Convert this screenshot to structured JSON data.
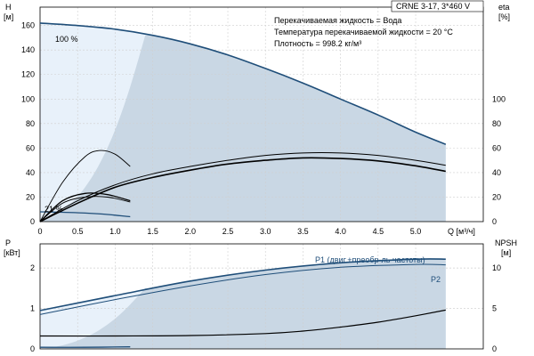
{
  "model": "CRNE 3-17, 3*460 V",
  "info": [
    "Перекачиваемая жидкость = Вода",
    "Температура перекачиваемой жидкости = 20 °C",
    "Плотность = 998.2 кг/м³"
  ],
  "chart_data": [
    {
      "id": "head",
      "type": "line",
      "x_label": "Q [м³/ч]",
      "y_left_label": [
        "H",
        "[м]"
      ],
      "y_right_label": [
        "eta",
        "[%]"
      ],
      "xlim": [
        0,
        5.9
      ],
      "ylim": [
        0,
        175
      ],
      "x_ticks": [
        "0",
        "0.5",
        "1.0",
        "1.5",
        "2.0",
        "2.5",
        "3.0",
        "3.5",
        "4.0",
        "4.5",
        "5.0"
      ],
      "y_ticks": [
        "0",
        "20",
        "40",
        "60",
        "80",
        "100",
        "120",
        "140",
        "160"
      ],
      "y2_ticks": [
        "0",
        "20",
        "40",
        "60",
        "80",
        "100"
      ],
      "curve_labels": [
        "100 %",
        "21 %"
      ],
      "series": [
        {
          "key": "head_100",
          "color": "#1f4e79",
          "width": 1.6,
          "x": [
            0,
            0.5,
            1.0,
            1.5,
            2.0,
            2.5,
            3.0,
            3.5,
            4.0,
            4.5,
            5.0,
            5.4
          ],
          "y": [
            162,
            160,
            157,
            152,
            145,
            136,
            125,
            113,
            100,
            87,
            73,
            63
          ]
        },
        {
          "key": "head_21",
          "color": "#1f4e79",
          "width": 1.3,
          "x": [
            0,
            0.3,
            0.6,
            0.9,
            1.2
          ],
          "y": [
            8,
            7.6,
            7,
            5.8,
            4
          ]
        },
        {
          "key": "eta_a",
          "color": "#000000",
          "width": 1.0,
          "x": [
            0,
            0.5,
            1.0,
            1.5,
            2.0,
            2.5,
            3.0,
            3.5,
            4.0,
            4.5,
            5.0,
            5.4
          ],
          "y": [
            0,
            17,
            30,
            39,
            45,
            50,
            54,
            56,
            56,
            54,
            50,
            46
          ]
        },
        {
          "key": "eta_b",
          "color": "#000000",
          "width": 1.6,
          "x": [
            0,
            0.5,
            1.0,
            1.5,
            2.0,
            2.5,
            3.0,
            3.5,
            4.0,
            4.5,
            5.0,
            5.4
          ],
          "y": [
            0,
            15,
            28,
            36,
            42,
            47,
            50,
            52,
            51.5,
            49.5,
            45.5,
            41
          ]
        },
        {
          "key": "eta_small_a",
          "color": "#000000",
          "width": 1.3,
          "x": [
            0,
            0.3,
            0.6,
            0.9,
            1.2
          ],
          "y": [
            0,
            17,
            23,
            22,
            17
          ]
        },
        {
          "key": "eta_small_b",
          "color": "#000000",
          "width": 0.9,
          "x": [
            0,
            0.3,
            0.6,
            0.9,
            1.2
          ],
          "y": [
            0,
            15,
            20,
            20,
            16
          ]
        },
        {
          "key": "eta_hump",
          "color": "#000000",
          "width": 0.9,
          "x": [
            0,
            0.3,
            0.6,
            0.8,
            1.0,
            1.2
          ],
          "y": [
            0,
            32,
            53,
            58,
            55,
            45
          ]
        }
      ],
      "area_upper_x": [
        0,
        0.5,
        1.0,
        1.5,
        2.0,
        2.5,
        3.0,
        3.5,
        4.0,
        4.5,
        5.0,
        5.4
      ],
      "area_upper_y": [
        162,
        160,
        157,
        152,
        145,
        136,
        125,
        113,
        100,
        87,
        73,
        63
      ],
      "area_lower_x": [
        5.4,
        4.0,
        3.0,
        2.0,
        1.5,
        1.0,
        0.6,
        0.3,
        0.15,
        0
      ],
      "area_lower_y": [
        0,
        0,
        0,
        0,
        0,
        0,
        0,
        0,
        0,
        0
      ],
      "light_boundary_x": [
        1.4,
        1.2,
        1.0,
        0.8,
        0.6,
        0.4,
        0.2,
        0.05,
        0
      ],
      "light_boundary_y": [
        152,
        110,
        75,
        48,
        28,
        14,
        5,
        0.8,
        0
      ]
    },
    {
      "id": "power",
      "type": "line",
      "x_label": "",
      "y_left_label": [
        "P",
        "[кВт]"
      ],
      "y_right_label": [
        "NPSH",
        "[м]"
      ],
      "xlim": [
        0,
        5.9
      ],
      "ylim": [
        0,
        2.6
      ],
      "y2lim": [
        0,
        13
      ],
      "y_ticks": [
        "0",
        "1",
        "2"
      ],
      "y2_ticks": [
        "0",
        "5",
        "10"
      ],
      "series_labels": [
        "P1 (двиг.+преобр-ль частоты)",
        "P2"
      ],
      "series": [
        {
          "key": "P1",
          "color": "#1f4e79",
          "width": 1.6,
          "x": [
            0,
            1.0,
            2.0,
            3.0,
            4.0,
            5.0,
            5.4
          ],
          "y": [
            0.95,
            1.32,
            1.68,
            1.95,
            2.13,
            2.22,
            2.22
          ]
        },
        {
          "key": "P2",
          "color": "#1f4e79",
          "width": 1.0,
          "x": [
            0,
            1.0,
            2.0,
            3.0,
            4.0,
            5.0,
            5.4
          ],
          "y": [
            0.85,
            1.22,
            1.56,
            1.84,
            2.02,
            2.09,
            2.08
          ]
        },
        {
          "key": "NPSH",
          "color": "#000000",
          "width": 1.2,
          "axis": "right",
          "x": [
            0,
            1.0,
            2.0,
            3.0,
            3.5,
            4.0,
            4.5,
            5.0,
            5.4
          ],
          "y": [
            1.6,
            1.6,
            1.65,
            1.9,
            2.2,
            2.7,
            3.3,
            4.1,
            4.8
          ]
        },
        {
          "key": "P_21",
          "color": "#1f4e79",
          "width": 1.3,
          "x": [
            0,
            0.6,
            1.2
          ],
          "y": [
            0.04,
            0.04,
            0.05
          ]
        }
      ],
      "area_upper_x": [
        0,
        1.0,
        2.0,
        3.0,
        4.0,
        5.0,
        5.4
      ],
      "area_upper_y": [
        0.95,
        1.32,
        1.68,
        1.95,
        2.13,
        2.22,
        2.22
      ],
      "light_boundary_x": [
        1.4,
        1.2,
        1.0,
        0.8,
        0.6,
        0.4,
        0.2,
        0
      ],
      "light_boundary_y": [
        1.5,
        1.1,
        0.75,
        0.48,
        0.28,
        0.14,
        0.05,
        0
      ]
    }
  ]
}
